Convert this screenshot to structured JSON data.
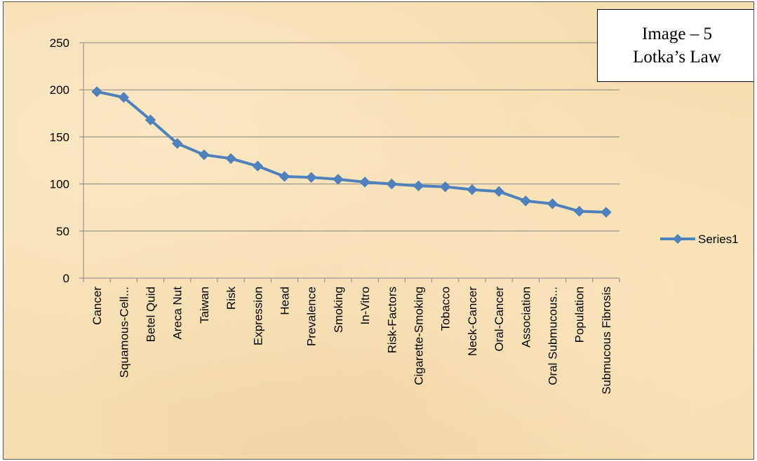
{
  "chart_data": {
    "type": "line",
    "title": "",
    "xlabel": "",
    "ylabel": "",
    "categories": [
      "Cancer",
      "Squamous-Cell...",
      "Betel Quid",
      "Areca Nut",
      "Taiwan",
      "Risk",
      "Expression",
      "Head",
      "Prevalence",
      "Smoking",
      "In-Vitro",
      "Risk-Factors",
      "Cigarette-Smoking",
      "Tobacco",
      "Neck-Cancer",
      "Oral-Cancer",
      "Association",
      "Oral Submucous...",
      "Population",
      "Submucous Fibrosis"
    ],
    "series": [
      {
        "name": "Series1",
        "values": [
          198,
          192,
          168,
          143,
          131,
          127,
          119,
          108,
          107,
          105,
          102,
          100,
          98,
          97,
          94,
          92,
          82,
          79,
          71,
          70
        ]
      }
    ],
    "ylim": [
      0,
      250
    ],
    "yticks": [
      0,
      50,
      100,
      150,
      200,
      250
    ],
    "grid": true,
    "legend": "right",
    "color": "#4f81bd"
  },
  "annotation": {
    "line1": "Image – 5",
    "line2": "Lotka’s Law"
  }
}
